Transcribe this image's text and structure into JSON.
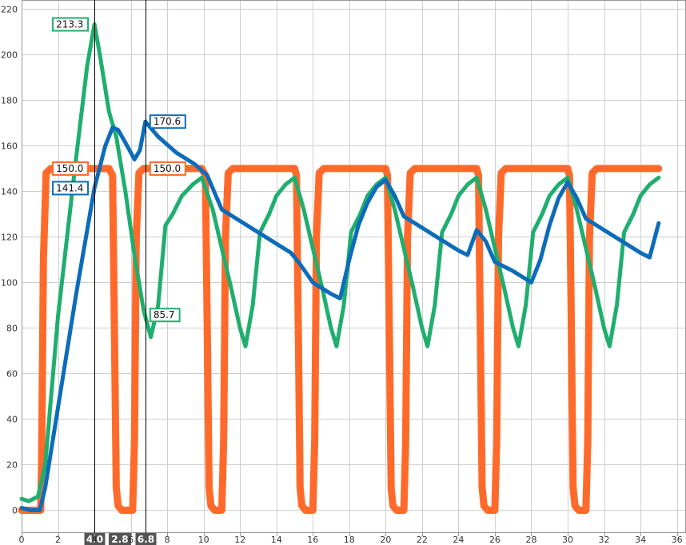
{
  "chart_data": {
    "type": "line",
    "xlim": [
      0,
      36.5
    ],
    "ylim": [
      -10,
      224
    ],
    "x_ticks": [
      0,
      2,
      4,
      6,
      8,
      10,
      12,
      14,
      16,
      18,
      20,
      22,
      24,
      26,
      28,
      30,
      32,
      34,
      36
    ],
    "y_ticks": [
      0,
      20,
      40,
      60,
      80,
      100,
      120,
      140,
      160,
      180,
      200,
      220
    ],
    "grid": true,
    "series": [
      {
        "color": "#ff6a2a",
        "points": [
          [
            0,
            0
          ],
          [
            1.05,
            0
          ],
          [
            1.1,
            20
          ],
          [
            1.2,
            110
          ],
          [
            1.35,
            148
          ],
          [
            1.6,
            150
          ],
          [
            4.8,
            150
          ],
          [
            5.0,
            147
          ],
          [
            5.1,
            80
          ],
          [
            5.2,
            10
          ],
          [
            5.3,
            2
          ],
          [
            5.5,
            0
          ],
          [
            6.1,
            0
          ],
          [
            6.2,
            30
          ],
          [
            6.3,
            120
          ],
          [
            6.45,
            148
          ],
          [
            6.7,
            150
          ],
          [
            9.9,
            150
          ],
          [
            10.1,
            147
          ],
          [
            10.2,
            80
          ],
          [
            10.3,
            10
          ],
          [
            10.4,
            2
          ],
          [
            10.6,
            0
          ],
          [
            11.0,
            0
          ],
          [
            11.1,
            30
          ],
          [
            11.2,
            120
          ],
          [
            11.35,
            148
          ],
          [
            11.6,
            150
          ],
          [
            15.0,
            150
          ],
          [
            15.1,
            147
          ],
          [
            15.2,
            80
          ],
          [
            15.3,
            10
          ],
          [
            15.4,
            2
          ],
          [
            15.6,
            0
          ],
          [
            16.0,
            0
          ],
          [
            16.1,
            30
          ],
          [
            16.2,
            120
          ],
          [
            16.35,
            148
          ],
          [
            16.6,
            150
          ],
          [
            20.0,
            150
          ],
          [
            20.1,
            147
          ],
          [
            20.2,
            80
          ],
          [
            20.3,
            10
          ],
          [
            20.4,
            2
          ],
          [
            20.6,
            0
          ],
          [
            21.0,
            0
          ],
          [
            21.1,
            30
          ],
          [
            21.2,
            120
          ],
          [
            21.35,
            148
          ],
          [
            21.6,
            150
          ],
          [
            25.0,
            150
          ],
          [
            25.1,
            147
          ],
          [
            25.2,
            80
          ],
          [
            25.3,
            10
          ],
          [
            25.4,
            2
          ],
          [
            25.6,
            0
          ],
          [
            26.0,
            0
          ],
          [
            26.1,
            30
          ],
          [
            26.2,
            120
          ],
          [
            26.35,
            148
          ],
          [
            26.6,
            150
          ],
          [
            30.0,
            150
          ],
          [
            30.1,
            147
          ],
          [
            30.2,
            80
          ],
          [
            30.3,
            10
          ],
          [
            30.4,
            2
          ],
          [
            30.6,
            0
          ],
          [
            31.0,
            0
          ],
          [
            31.1,
            30
          ],
          [
            31.2,
            120
          ],
          [
            31.35,
            148
          ],
          [
            31.6,
            150
          ],
          [
            35.0,
            150
          ]
        ]
      },
      {
        "color": "#1fae6e",
        "points": [
          [
            0,
            5
          ],
          [
            0.4,
            4
          ],
          [
            0.9,
            6
          ],
          [
            1.3,
            20
          ],
          [
            2.0,
            85
          ],
          [
            3.0,
            155
          ],
          [
            3.6,
            195
          ],
          [
            4.0,
            213.3
          ],
          [
            4.3,
            200
          ],
          [
            4.8,
            175
          ],
          [
            5.2,
            164
          ],
          [
            5.7,
            140
          ],
          [
            6.2,
            112
          ],
          [
            6.7,
            88
          ],
          [
            7.1,
            76
          ],
          [
            7.5,
            90
          ],
          [
            7.9,
            125
          ],
          [
            8.3,
            130
          ],
          [
            8.8,
            138
          ],
          [
            9.4,
            143
          ],
          [
            9.9,
            146
          ],
          [
            10.5,
            132
          ],
          [
            11.0,
            115
          ],
          [
            11.5,
            98
          ],
          [
            12.0,
            80
          ],
          [
            12.3,
            72
          ],
          [
            12.7,
            90
          ],
          [
            13.1,
            122
          ],
          [
            13.6,
            130
          ],
          [
            14.0,
            138
          ],
          [
            14.5,
            143
          ],
          [
            15.0,
            146
          ],
          [
            15.5,
            132
          ],
          [
            16.0,
            115
          ],
          [
            16.5,
            98
          ],
          [
            17.0,
            80
          ],
          [
            17.3,
            72
          ],
          [
            17.7,
            90
          ],
          [
            18.1,
            122
          ],
          [
            18.6,
            130
          ],
          [
            19.0,
            138
          ],
          [
            19.5,
            143
          ],
          [
            20.0,
            146
          ],
          [
            20.5,
            132
          ],
          [
            21.0,
            115
          ],
          [
            21.5,
            98
          ],
          [
            22.0,
            80
          ],
          [
            22.3,
            72
          ],
          [
            22.7,
            90
          ],
          [
            23.1,
            122
          ],
          [
            23.6,
            130
          ],
          [
            24.0,
            138
          ],
          [
            24.5,
            143
          ],
          [
            25.0,
            146
          ],
          [
            25.5,
            132
          ],
          [
            26.0,
            115
          ],
          [
            26.5,
            98
          ],
          [
            27.0,
            80
          ],
          [
            27.3,
            72
          ],
          [
            27.7,
            90
          ],
          [
            28.1,
            122
          ],
          [
            28.6,
            130
          ],
          [
            29.0,
            138
          ],
          [
            29.5,
            143
          ],
          [
            30.0,
            146
          ],
          [
            30.5,
            132
          ],
          [
            31.0,
            115
          ],
          [
            31.5,
            98
          ],
          [
            32.0,
            80
          ],
          [
            32.3,
            72
          ],
          [
            32.7,
            90
          ],
          [
            33.1,
            122
          ],
          [
            33.6,
            130
          ],
          [
            34.0,
            138
          ],
          [
            34.5,
            143
          ],
          [
            35.0,
            146
          ]
        ]
      },
      {
        "color": "#0c6cba",
        "points": [
          [
            0,
            1
          ],
          [
            0.5,
            0
          ],
          [
            1.0,
            0
          ],
          [
            1.3,
            10
          ],
          [
            2.0,
            45
          ],
          [
            3.0,
            95
          ],
          [
            4.0,
            141.4
          ],
          [
            4.6,
            160
          ],
          [
            5.0,
            168
          ],
          [
            5.3,
            167
          ],
          [
            5.8,
            160
          ],
          [
            6.2,
            154
          ],
          [
            6.5,
            158
          ],
          [
            6.8,
            170.6
          ],
          [
            7.5,
            164
          ],
          [
            8.5,
            157
          ],
          [
            9.5,
            152
          ],
          [
            10.2,
            147
          ],
          [
            11.0,
            132
          ],
          [
            12.0,
            127
          ],
          [
            13.0,
            122
          ],
          [
            14.0,
            117
          ],
          [
            14.8,
            113
          ],
          [
            15.3,
            108
          ],
          [
            16.0,
            100
          ],
          [
            17.0,
            95
          ],
          [
            17.5,
            93
          ],
          [
            18.0,
            110
          ],
          [
            18.5,
            125
          ],
          [
            19.0,
            135
          ],
          [
            19.5,
            142
          ],
          [
            20.0,
            145
          ],
          [
            20.5,
            138
          ],
          [
            21.0,
            129
          ],
          [
            22.0,
            124
          ],
          [
            23.0,
            119
          ],
          [
            24.0,
            114
          ],
          [
            24.5,
            112
          ],
          [
            25.0,
            123
          ],
          [
            25.5,
            118
          ],
          [
            26.0,
            109
          ],
          [
            27.0,
            105
          ],
          [
            28.0,
            100
          ],
          [
            28.5,
            110
          ],
          [
            29.0,
            125
          ],
          [
            29.5,
            137
          ],
          [
            30.0,
            144
          ],
          [
            30.5,
            137
          ],
          [
            31.0,
            128
          ],
          [
            32.0,
            123
          ],
          [
            33.0,
            118
          ],
          [
            34.0,
            113
          ],
          [
            34.5,
            111
          ],
          [
            35.0,
            126
          ]
        ]
      }
    ],
    "annotations": [
      {
        "label": "213.3",
        "x": 4.0,
        "y": 213.3,
        "color": "#1fae6e",
        "side": "left"
      },
      {
        "label": "150.0",
        "x": 4.0,
        "y": 150.0,
        "color": "#ff6a2a",
        "side": "left"
      },
      {
        "label": "141.4",
        "x": 4.0,
        "y": 141.4,
        "color": "#0c6cba",
        "side": "left"
      },
      {
        "label": "170.6",
        "x": 6.8,
        "y": 170.6,
        "color": "#0c6cba",
        "side": "right"
      },
      {
        "label": "150.0",
        "x": 6.8,
        "y": 150.0,
        "color": "#ff6a2a",
        "side": "right"
      },
      {
        "label": "85.7",
        "x": 6.8,
        "y": 85.7,
        "color": "#1fae6e",
        "side": "right"
      }
    ],
    "cursors": [
      {
        "x": 4.0,
        "label": "4.0"
      },
      {
        "x": 6.8,
        "label": "6.8"
      }
    ],
    "cursor_delta": {
      "x": 5.4,
      "label": "2.8"
    }
  }
}
